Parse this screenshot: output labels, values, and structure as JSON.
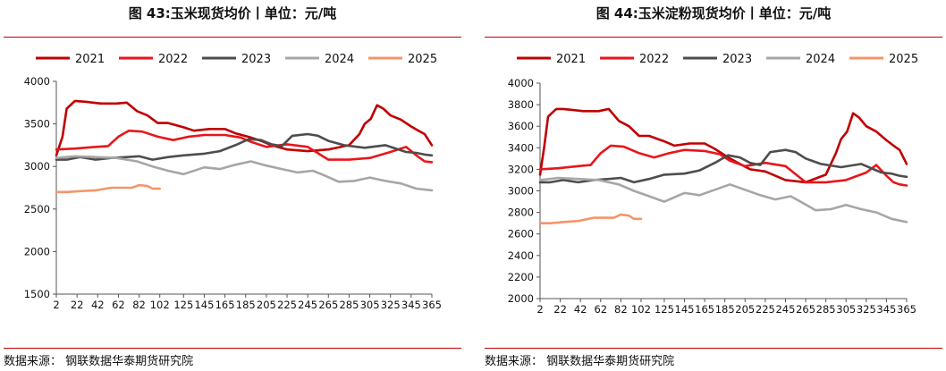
{
  "colors": {
    "s2021": "#c00000",
    "s2022": "#e8161c",
    "s2023": "#4d4d4d",
    "s2024": "#a6a6a6",
    "s2025": "#f4956a",
    "rule": "#c00000"
  },
  "chart_data": [
    {
      "type": "line",
      "title": "图 43:玉米现货均价丨单位：元/吨",
      "source": "数据来源：  钢联数据华泰期货研究院",
      "xlabel": "",
      "ylabel": "",
      "xticks": [
        2,
        22,
        42,
        62,
        82,
        102,
        125,
        145,
        165,
        185,
        205,
        225,
        245,
        265,
        285,
        305,
        325,
        345,
        365
      ],
      "xlim": [
        2,
        365
      ],
      "ylim": [
        1500,
        4000
      ],
      "yticks": [
        1500,
        2000,
        2500,
        3000,
        3500,
        4000
      ],
      "legend": [
        "2021",
        "2022",
        "2023",
        "2024",
        "2025"
      ],
      "series": [
        {
          "name": "2021",
          "color_key": "s2021",
          "x": [
            2,
            8,
            12,
            20,
            30,
            45,
            60,
            70,
            80,
            90,
            100,
            110,
            125,
            135,
            150,
            165,
            175,
            190,
            200,
            210,
            225,
            245,
            265,
            285,
            295,
            300,
            306,
            312,
            318,
            325,
            335,
            345,
            352,
            358,
            365
          ],
          "y": [
            3130,
            3350,
            3680,
            3770,
            3760,
            3740,
            3740,
            3750,
            3650,
            3600,
            3510,
            3510,
            3460,
            3420,
            3440,
            3440,
            3390,
            3340,
            3300,
            3250,
            3200,
            3180,
            3200,
            3250,
            3380,
            3500,
            3560,
            3720,
            3680,
            3600,
            3550,
            3470,
            3420,
            3380,
            3250
          ]
        },
        {
          "name": "2022",
          "color_key": "s2022",
          "x": [
            2,
            20,
            40,
            52,
            62,
            72,
            85,
            100,
            115,
            130,
            145,
            165,
            180,
            190,
            205,
            225,
            245,
            265,
            285,
            305,
            325,
            340,
            350,
            358,
            365
          ],
          "y": [
            3200,
            3210,
            3230,
            3240,
            3350,
            3420,
            3410,
            3350,
            3310,
            3350,
            3370,
            3370,
            3340,
            3290,
            3230,
            3260,
            3230,
            3080,
            3080,
            3100,
            3170,
            3230,
            3130,
            3060,
            3050
          ]
        },
        {
          "name": "2023",
          "color_key": "s2023",
          "x": [
            2,
            12,
            25,
            40,
            55,
            70,
            82,
            95,
            110,
            125,
            145,
            160,
            175,
            188,
            200,
            210,
            220,
            230,
            245,
            255,
            265,
            280,
            300,
            320,
            340,
            350,
            358,
            365
          ],
          "y": [
            3080,
            3080,
            3110,
            3080,
            3100,
            3110,
            3120,
            3080,
            3110,
            3130,
            3150,
            3180,
            3250,
            3320,
            3310,
            3260,
            3240,
            3360,
            3380,
            3360,
            3300,
            3250,
            3220,
            3250,
            3170,
            3160,
            3140,
            3130
          ]
        },
        {
          "name": "2024",
          "color_key": "s2024",
          "x": [
            2,
            20,
            40,
            60,
            80,
            95,
            110,
            125,
            145,
            160,
            175,
            190,
            205,
            220,
            235,
            250,
            260,
            275,
            290,
            305,
            320,
            335,
            350,
            365
          ],
          "y": [
            3100,
            3120,
            3110,
            3100,
            3060,
            3000,
            2950,
            2910,
            2990,
            2970,
            3020,
            3060,
            3010,
            2970,
            2930,
            2950,
            2900,
            2820,
            2830,
            2870,
            2830,
            2800,
            2740,
            2720
          ]
        },
        {
          "name": "2025",
          "color_key": "s2025",
          "x": [
            2,
            12,
            25,
            40,
            55,
            65,
            75,
            82,
            90,
            95,
            102
          ],
          "y": [
            2700,
            2700,
            2710,
            2720,
            2750,
            2750,
            2750,
            2780,
            2770,
            2740,
            2740
          ]
        }
      ]
    },
    {
      "type": "line",
      "title": "图 44:玉米淀粉现货均价丨单位：元/吨",
      "source": "数据来源：  钢联数据华泰期货研究院",
      "xlabel": "",
      "ylabel": "",
      "xticks": [
        2,
        22,
        42,
        62,
        82,
        102,
        125,
        145,
        165,
        185,
        205,
        225,
        245,
        265,
        285,
        305,
        325,
        345,
        365
      ],
      "xlim": [
        2,
        365
      ],
      "ylim": [
        2000,
        4000
      ],
      "yticks": [
        2000,
        2200,
        2400,
        2600,
        2800,
        3000,
        3200,
        3400,
        3600,
        3800,
        4000
      ],
      "legend": [
        "2021",
        "2022",
        "2023",
        "2024",
        "2025"
      ],
      "series": [
        {
          "name": "2021",
          "color_key": "s2021",
          "x": [
            2,
            6,
            10,
            18,
            25,
            45,
            60,
            70,
            80,
            90,
            100,
            110,
            125,
            135,
            150,
            165,
            175,
            190,
            200,
            210,
            225,
            245,
            265,
            285,
            295,
            300,
            306,
            312,
            318,
            325,
            335,
            345,
            352,
            358,
            365
          ],
          "y": [
            3150,
            3400,
            3690,
            3760,
            3760,
            3740,
            3740,
            3760,
            3650,
            3600,
            3510,
            3510,
            3460,
            3420,
            3440,
            3440,
            3390,
            3300,
            3250,
            3200,
            3180,
            3100,
            3080,
            3150,
            3350,
            3480,
            3550,
            3720,
            3680,
            3600,
            3550,
            3470,
            3420,
            3380,
            3250
          ]
        },
        {
          "name": "2022",
          "color_key": "s2022",
          "x": [
            2,
            20,
            40,
            52,
            62,
            72,
            85,
            100,
            115,
            130,
            145,
            165,
            180,
            190,
            205,
            225,
            245,
            265,
            285,
            305,
            325,
            335,
            345,
            352,
            358,
            365
          ],
          "y": [
            3200,
            3210,
            3230,
            3240,
            3350,
            3420,
            3410,
            3350,
            3310,
            3350,
            3380,
            3370,
            3340,
            3280,
            3230,
            3260,
            3230,
            3080,
            3080,
            3100,
            3170,
            3240,
            3140,
            3080,
            3060,
            3050
          ]
        },
        {
          "name": "2023",
          "color_key": "s2023",
          "x": [
            2,
            12,
            25,
            40,
            55,
            70,
            82,
            95,
            110,
            125,
            145,
            160,
            175,
            188,
            200,
            210,
            220,
            230,
            245,
            255,
            265,
            280,
            300,
            320,
            340,
            350,
            358,
            365
          ],
          "y": [
            3080,
            3080,
            3100,
            3080,
            3100,
            3110,
            3120,
            3080,
            3110,
            3150,
            3160,
            3190,
            3260,
            3330,
            3310,
            3260,
            3240,
            3360,
            3380,
            3360,
            3300,
            3250,
            3220,
            3250,
            3170,
            3160,
            3140,
            3130
          ]
        },
        {
          "name": "2024",
          "color_key": "s2024",
          "x": [
            2,
            20,
            40,
            60,
            80,
            95,
            110,
            125,
            145,
            160,
            175,
            190,
            205,
            220,
            235,
            250,
            260,
            275,
            290,
            305,
            320,
            335,
            350,
            365
          ],
          "y": [
            3100,
            3120,
            3110,
            3100,
            3060,
            3000,
            2950,
            2900,
            2980,
            2960,
            3010,
            3060,
            3010,
            2960,
            2920,
            2950,
            2900,
            2820,
            2830,
            2870,
            2830,
            2800,
            2740,
            2710
          ]
        },
        {
          "name": "2025",
          "color_key": "s2025",
          "x": [
            2,
            12,
            25,
            40,
            55,
            65,
            75,
            82,
            90,
            95,
            102
          ],
          "y": [
            2700,
            2700,
            2710,
            2720,
            2750,
            2750,
            2750,
            2780,
            2770,
            2740,
            2740
          ]
        }
      ]
    }
  ]
}
